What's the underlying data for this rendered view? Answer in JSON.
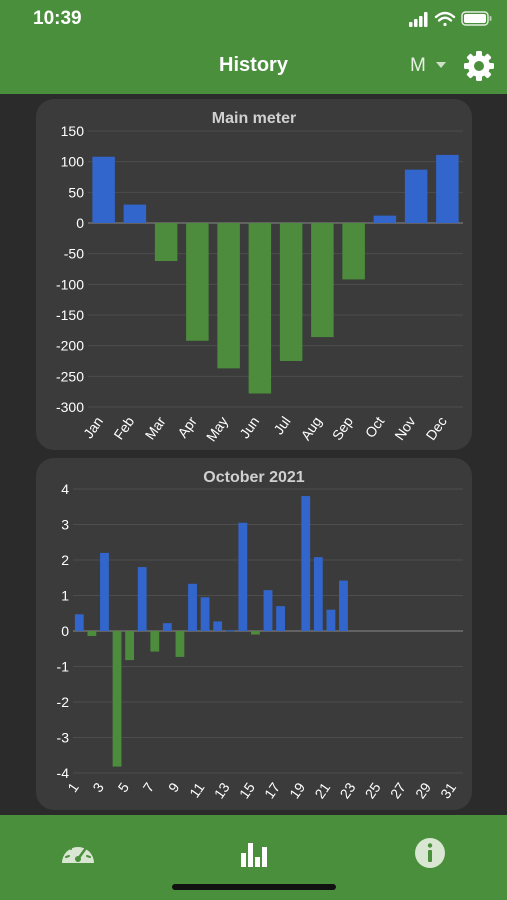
{
  "status_bar": {
    "time": "10:39"
  },
  "header": {
    "title": "History",
    "mode_label": "M",
    "settings_icon": "gear-icon"
  },
  "colors": {
    "accent": "#4a8f3c",
    "positive_bar": "#3366cc",
    "negative_bar": "#4c8c3c",
    "card": "#3b3b3b",
    "background": "#2b2b2b"
  },
  "tabs": [
    {
      "name": "dashboard",
      "icon": "speedometer-icon"
    },
    {
      "name": "history",
      "icon": "bar-chart-icon",
      "active": true
    },
    {
      "name": "info",
      "icon": "info-icon"
    }
  ],
  "chart_data": [
    {
      "type": "bar",
      "title": "Main meter",
      "categories": [
        "Jan",
        "Feb",
        "Mar",
        "Apr",
        "May",
        "Jun",
        "Jul",
        "Aug",
        "Sep",
        "Oct",
        "Nov",
        "Dec"
      ],
      "values": [
        108,
        30,
        -62,
        -192,
        -237,
        -278,
        -225,
        -186,
        -92,
        12,
        87,
        111
      ],
      "ylim": [
        -300,
        150
      ],
      "yticks": [
        150,
        100,
        50,
        0,
        -50,
        -100,
        -150,
        -200,
        -250,
        -300
      ],
      "grid": true
    },
    {
      "type": "bar",
      "title": "October 2021",
      "categories": [
        "1",
        "2",
        "3",
        "4",
        "5",
        "6",
        "7",
        "8",
        "9",
        "10",
        "11",
        "12",
        "13",
        "14",
        "15",
        "16",
        "17",
        "18",
        "19",
        "20",
        "21",
        "22",
        "23",
        "24",
        "25",
        "26",
        "27",
        "28",
        "29",
        "30",
        "31"
      ],
      "xtick_labels": [
        "1",
        "3",
        "5",
        "7",
        "9",
        "11",
        "13",
        "15",
        "17",
        "19",
        "21",
        "23",
        "25",
        "27",
        "29",
        "31"
      ],
      "values": [
        0.47,
        -0.14,
        2.2,
        -3.82,
        -0.82,
        1.8,
        -0.58,
        0.22,
        -0.73,
        1.33,
        0.95,
        0.27,
        0.02,
        3.05,
        -0.1,
        1.15,
        0.7,
        0.0,
        3.8,
        2.08,
        0.6,
        1.42,
        0,
        0,
        0,
        0,
        0,
        0,
        0,
        0,
        0
      ],
      "ylim": [
        -4,
        4
      ],
      "yticks": [
        4,
        3,
        2,
        1,
        0,
        -1,
        -2,
        -3,
        -4
      ],
      "grid": true
    }
  ]
}
